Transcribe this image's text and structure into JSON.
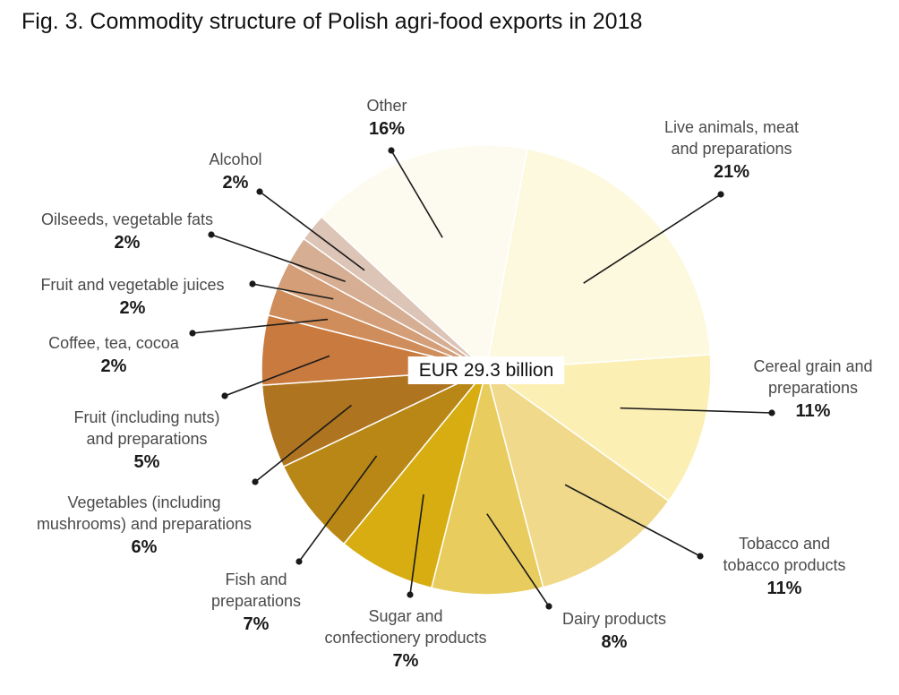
{
  "title": "Fig. 3. Commodity structure of Polish agri-food exports in 2018",
  "chart_data": {
    "type": "pie",
    "center_label": "EUR 29.3 billion",
    "slices": [
      {
        "lines": [
          "Live animals, meat",
          "and preparations"
        ],
        "value": 21,
        "value_label": "21%",
        "color": "#FDF9DF"
      },
      {
        "lines": [
          "Cereal grain and",
          "preparations"
        ],
        "value": 11,
        "value_label": "11%",
        "color": "#FCEFB4"
      },
      {
        "lines": [
          "Tobacco and",
          "tobacco products"
        ],
        "value": 11,
        "value_label": "11%",
        "color": "#F0D98A"
      },
      {
        "lines": [
          "Dairy products"
        ],
        "value": 8,
        "value_label": "8%",
        "color": "#E8CC5E"
      },
      {
        "lines": [
          "Sugar and",
          "confectionery products"
        ],
        "value": 7,
        "value_label": "7%",
        "color": "#D7AD11"
      },
      {
        "lines": [
          "Fish and",
          "preparations"
        ],
        "value": 7,
        "value_label": "7%",
        "color": "#B98716"
      },
      {
        "lines": [
          "Vegetables (including",
          "mushrooms) and preparations"
        ],
        "value": 6,
        "value_label": "6%",
        "color": "#AF7420"
      },
      {
        "lines": [
          "Fruit (including nuts)",
          "and preparations"
        ],
        "value": 5,
        "value_label": "5%",
        "color": "#C97A3E"
      },
      {
        "lines": [
          "Coffee, tea, cocoa"
        ],
        "value": 2,
        "value_label": "2%",
        "color": "#CE8D5B"
      },
      {
        "lines": [
          "Fruit and vegetable juices"
        ],
        "value": 2,
        "value_label": "2%",
        "color": "#D39E78"
      },
      {
        "lines": [
          "Oilseeds, vegetable fats"
        ],
        "value": 2,
        "value_label": "2%",
        "color": "#D6AE93"
      },
      {
        "lines": [
          "Alcohol"
        ],
        "value": 2,
        "value_label": "2%",
        "color": "#DCC4B6"
      },
      {
        "lines": [
          "Other"
        ],
        "value": 16,
        "value_label": "16%",
        "color": "#FDFBEF"
      }
    ]
  }
}
